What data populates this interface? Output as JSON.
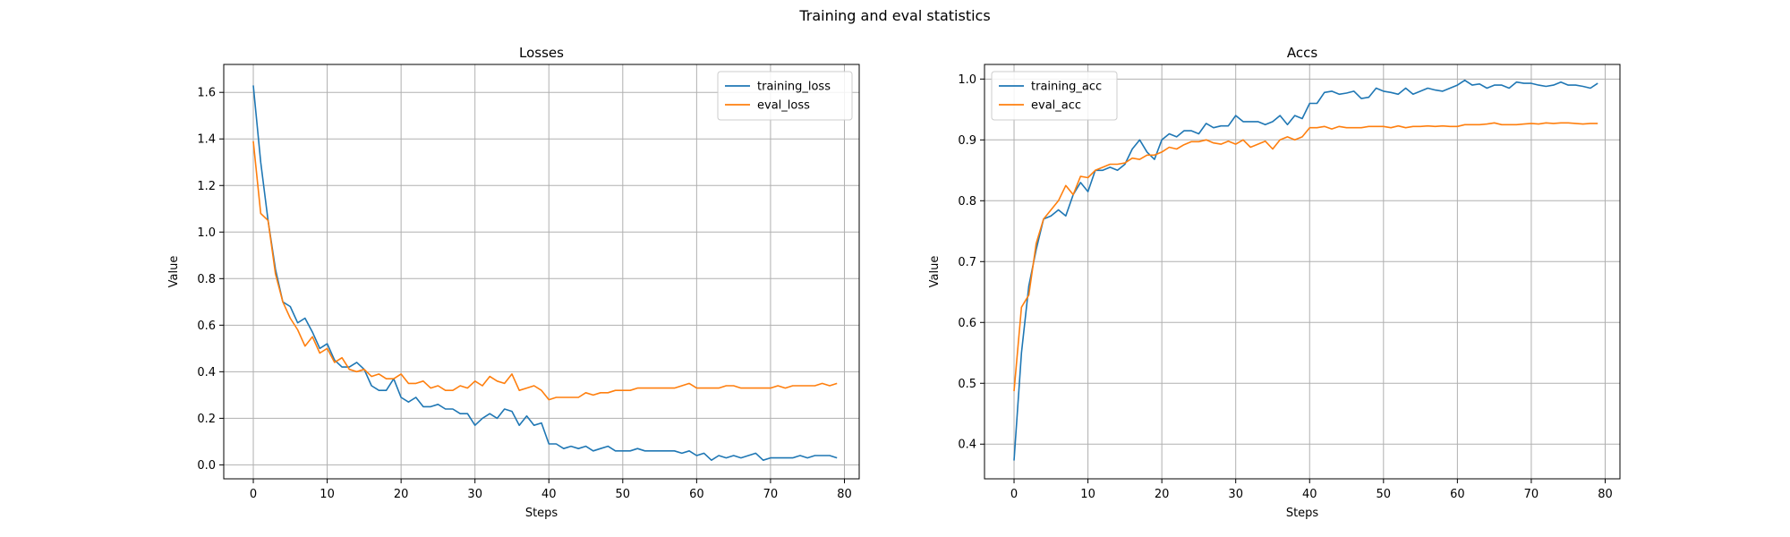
{
  "figure": {
    "suptitle": "Training and eval statistics"
  },
  "colors": {
    "series_blue": "#1f77b4",
    "series_orange": "#ff7f0e",
    "grid": "#b0b0b0",
    "axes": "#000000"
  },
  "chart_data": [
    {
      "type": "line",
      "title": "Losses",
      "xlabel": "Steps",
      "ylabel": "Value",
      "xlim": [
        -4,
        82
      ],
      "ylim": [
        -0.06,
        1.72
      ],
      "xticks": [
        0,
        10,
        20,
        30,
        40,
        50,
        60,
        70,
        80
      ],
      "yticks": [
        0.0,
        0.2,
        0.4,
        0.6,
        0.8,
        1.0,
        1.2,
        1.4,
        1.6
      ],
      "ytick_decimals": 1,
      "grid": true,
      "legend_position": "top-right",
      "x": [
        0,
        1,
        2,
        3,
        4,
        5,
        6,
        7,
        8,
        9,
        10,
        11,
        12,
        13,
        14,
        15,
        16,
        17,
        18,
        19,
        20,
        21,
        22,
        23,
        24,
        25,
        26,
        27,
        28,
        29,
        30,
        31,
        32,
        33,
        34,
        35,
        36,
        37,
        38,
        39,
        40,
        41,
        42,
        43,
        44,
        45,
        46,
        47,
        48,
        49,
        50,
        51,
        52,
        53,
        54,
        55,
        56,
        57,
        58,
        59,
        60,
        61,
        62,
        63,
        64,
        65,
        66,
        67,
        68,
        69,
        70,
        71,
        72,
        73,
        74,
        75,
        76,
        77,
        78,
        79
      ],
      "series": [
        {
          "name": "training_loss",
          "color": "#1f77b4",
          "values": [
            1.63,
            1.3,
            1.05,
            0.84,
            0.7,
            0.68,
            0.61,
            0.63,
            0.57,
            0.5,
            0.52,
            0.45,
            0.42,
            0.42,
            0.44,
            0.41,
            0.34,
            0.32,
            0.32,
            0.37,
            0.29,
            0.27,
            0.29,
            0.25,
            0.25,
            0.26,
            0.24,
            0.24,
            0.22,
            0.22,
            0.17,
            0.2,
            0.22,
            0.2,
            0.24,
            0.23,
            0.17,
            0.21,
            0.17,
            0.18,
            0.09,
            0.09,
            0.07,
            0.08,
            0.07,
            0.08,
            0.06,
            0.07,
            0.08,
            0.06,
            0.06,
            0.06,
            0.07,
            0.06,
            0.06,
            0.06,
            0.06,
            0.06,
            0.05,
            0.06,
            0.04,
            0.05,
            0.02,
            0.04,
            0.03,
            0.04,
            0.03,
            0.04,
            0.05,
            0.02,
            0.03,
            0.03,
            0.03,
            0.03,
            0.04,
            0.03,
            0.04,
            0.04,
            0.04,
            0.03
          ]
        },
        {
          "name": "eval_loss",
          "color": "#ff7f0e",
          "values": [
            1.39,
            1.08,
            1.05,
            0.82,
            0.7,
            0.63,
            0.58,
            0.51,
            0.55,
            0.48,
            0.5,
            0.44,
            0.46,
            0.41,
            0.4,
            0.41,
            0.38,
            0.39,
            0.37,
            0.37,
            0.39,
            0.35,
            0.35,
            0.36,
            0.33,
            0.34,
            0.32,
            0.32,
            0.34,
            0.33,
            0.36,
            0.34,
            0.38,
            0.36,
            0.35,
            0.39,
            0.32,
            0.33,
            0.34,
            0.32,
            0.28,
            0.29,
            0.29,
            0.29,
            0.29,
            0.31,
            0.3,
            0.31,
            0.31,
            0.32,
            0.32,
            0.32,
            0.33,
            0.33,
            0.33,
            0.33,
            0.33,
            0.33,
            0.34,
            0.35,
            0.33,
            0.33,
            0.33,
            0.33,
            0.34,
            0.34,
            0.33,
            0.33,
            0.33,
            0.33,
            0.33,
            0.34,
            0.33,
            0.34,
            0.34,
            0.34,
            0.34,
            0.35,
            0.34,
            0.35
          ]
        }
      ]
    },
    {
      "type": "line",
      "title": "Accs",
      "xlabel": "Steps",
      "ylabel": "Value",
      "xlim": [
        -4,
        82
      ],
      "ylim": [
        0.343,
        1.024
      ],
      "xticks": [
        0,
        10,
        20,
        30,
        40,
        50,
        60,
        70,
        80
      ],
      "yticks": [
        0.4,
        0.5,
        0.6,
        0.7,
        0.8,
        0.9,
        1.0
      ],
      "ytick_decimals": 1,
      "grid": true,
      "legend_position": "top-left",
      "x": [
        0,
        1,
        2,
        3,
        4,
        5,
        6,
        7,
        8,
        9,
        10,
        11,
        12,
        13,
        14,
        15,
        16,
        17,
        18,
        19,
        20,
        21,
        22,
        23,
        24,
        25,
        26,
        27,
        28,
        29,
        30,
        31,
        32,
        33,
        34,
        35,
        36,
        37,
        38,
        39,
        40,
        41,
        42,
        43,
        44,
        45,
        46,
        47,
        48,
        49,
        50,
        51,
        52,
        53,
        54,
        55,
        56,
        57,
        58,
        59,
        60,
        61,
        62,
        63,
        64,
        65,
        66,
        67,
        68,
        69,
        70,
        71,
        72,
        73,
        74,
        75,
        76,
        77,
        78,
        79
      ],
      "series": [
        {
          "name": "training_acc",
          "color": "#1f77b4",
          "values": [
            0.373,
            0.55,
            0.66,
            0.72,
            0.77,
            0.775,
            0.785,
            0.775,
            0.81,
            0.83,
            0.815,
            0.85,
            0.85,
            0.855,
            0.85,
            0.86,
            0.885,
            0.9,
            0.88,
            0.868,
            0.9,
            0.91,
            0.905,
            0.915,
            0.915,
            0.91,
            0.927,
            0.92,
            0.923,
            0.923,
            0.94,
            0.93,
            0.93,
            0.93,
            0.925,
            0.93,
            0.94,
            0.925,
            0.94,
            0.935,
            0.96,
            0.96,
            0.978,
            0.98,
            0.975,
            0.977,
            0.98,
            0.968,
            0.97,
            0.985,
            0.98,
            0.978,
            0.975,
            0.985,
            0.975,
            0.98,
            0.985,
            0.982,
            0.98,
            0.985,
            0.99,
            0.998,
            0.99,
            0.992,
            0.985,
            0.99,
            0.99,
            0.985,
            0.995,
            0.993,
            0.993,
            0.99,
            0.988,
            0.99,
            0.995,
            0.99,
            0.99,
            0.988,
            0.985,
            0.993
          ]
        },
        {
          "name": "eval_acc",
          "color": "#ff7f0e",
          "values": [
            0.487,
            0.625,
            0.645,
            0.73,
            0.77,
            0.785,
            0.8,
            0.825,
            0.81,
            0.84,
            0.838,
            0.85,
            0.855,
            0.86,
            0.86,
            0.862,
            0.87,
            0.868,
            0.875,
            0.875,
            0.88,
            0.888,
            0.885,
            0.892,
            0.897,
            0.897,
            0.9,
            0.895,
            0.893,
            0.898,
            0.893,
            0.9,
            0.888,
            0.893,
            0.898,
            0.885,
            0.9,
            0.905,
            0.9,
            0.905,
            0.92,
            0.92,
            0.922,
            0.918,
            0.922,
            0.92,
            0.92,
            0.92,
            0.922,
            0.922,
            0.922,
            0.92,
            0.923,
            0.92,
            0.922,
            0.922,
            0.923,
            0.922,
            0.923,
            0.922,
            0.922,
            0.925,
            0.925,
            0.925,
            0.926,
            0.928,
            0.925,
            0.925,
            0.925,
            0.926,
            0.927,
            0.926,
            0.928,
            0.927,
            0.928,
            0.928,
            0.927,
            0.926,
            0.927,
            0.927
          ]
        }
      ]
    }
  ]
}
